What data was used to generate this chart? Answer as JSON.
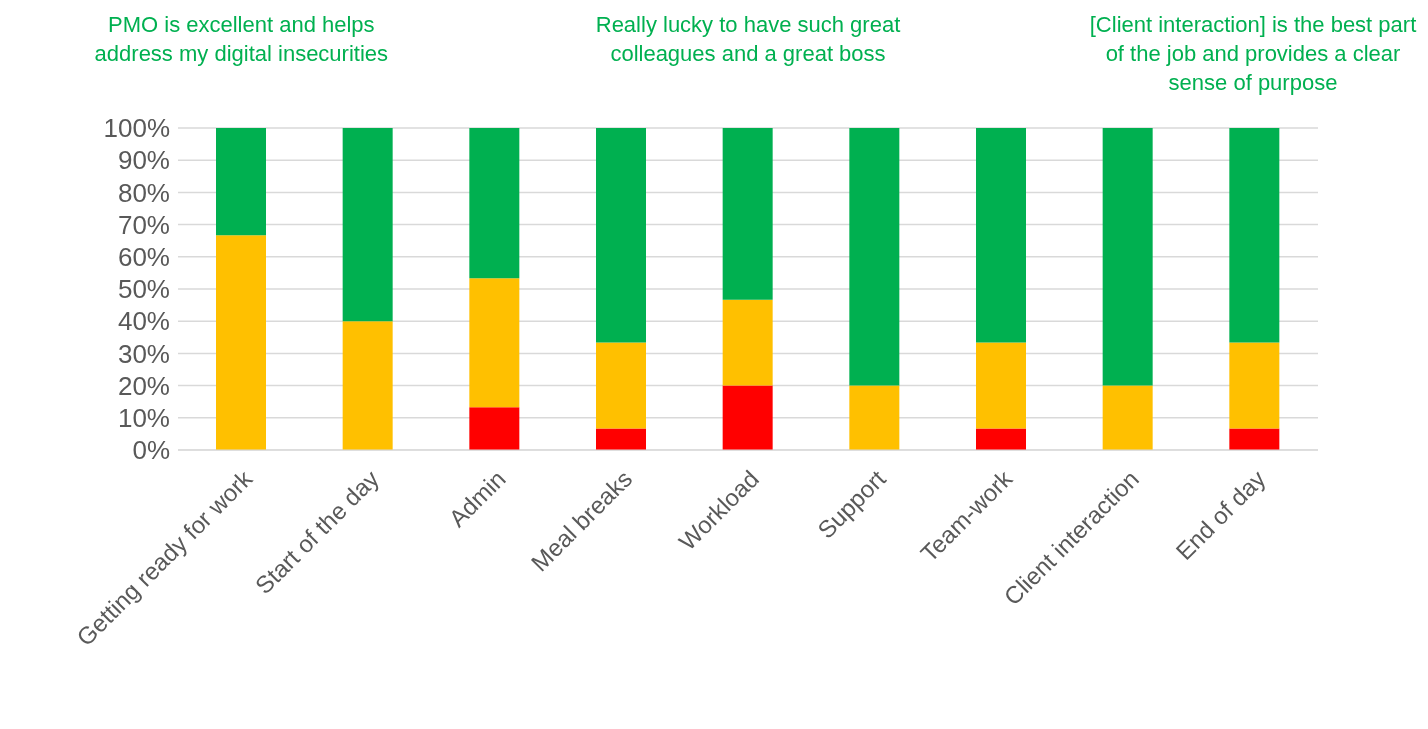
{
  "chart_data": {
    "type": "bar",
    "stacked": true,
    "categories": [
      "Getting ready for work",
      "Start of the day",
      "Admin",
      "Meal breaks",
      "Workload",
      "Support",
      "Team-work",
      "Client interaction",
      "End of day"
    ],
    "series": [
      {
        "color": "#ff0000",
        "values": [
          0,
          0,
          13.3,
          6.7,
          20,
          0,
          6.7,
          0,
          6.7
        ]
      },
      {
        "color": "#ffc000",
        "values": [
          66.7,
          40,
          40,
          26.7,
          26.7,
          20,
          26.7,
          20,
          26.7
        ]
      },
      {
        "color": "#00b050",
        "values": [
          33.3,
          60,
          46.7,
          66.7,
          53.3,
          80,
          66.7,
          80,
          66.7
        ]
      }
    ],
    "ylim": [
      0,
      100
    ],
    "yticks": [
      {
        "value": 0,
        "label": "0%"
      },
      {
        "value": 10,
        "label": "10%"
      },
      {
        "value": 20,
        "label": "20%"
      },
      {
        "value": 30,
        "label": "30%"
      },
      {
        "value": 40,
        "label": "40%"
      },
      {
        "value": 50,
        "label": "50%"
      },
      {
        "value": 60,
        "label": "60%"
      },
      {
        "value": 70,
        "label": "70%"
      },
      {
        "value": 80,
        "label": "80%"
      },
      {
        "value": 90,
        "label": "90%"
      },
      {
        "value": 100,
        "label": "100%"
      }
    ],
    "grid": "y",
    "annotations": [
      "PMO is excellent and helps address my digital insecurities",
      "Really lucky to have such great colleagues and a great boss",
      "[Client interaction] is the best part of the job and provides a clear sense of purpose"
    ]
  }
}
